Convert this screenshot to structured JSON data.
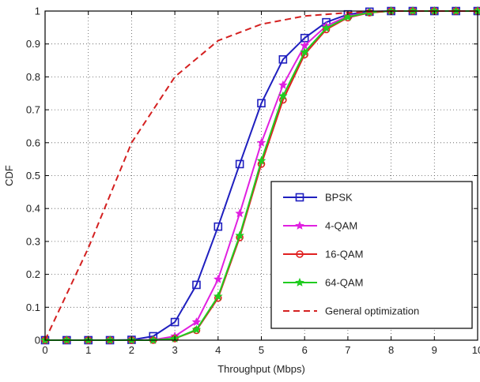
{
  "chart_data": {
    "type": "line",
    "title": "",
    "xlabel": "Throughput (Mbps)",
    "ylabel": "CDF",
    "xlim": [
      0,
      10
    ],
    "ylim": [
      0,
      1
    ],
    "xticks": [
      "0",
      "1",
      "2",
      "3",
      "4",
      "5",
      "6",
      "7",
      "8",
      "9",
      "10"
    ],
    "yticks": [
      "0",
      "0.1",
      "0.2",
      "0.3",
      "0.4",
      "0.5",
      "0.6",
      "0.7",
      "0.8",
      "0.9",
      "1"
    ],
    "grid": true,
    "legend_position": "lower-right",
    "series": [
      {
        "name": "BPSK",
        "color": "#1f1fbf",
        "marker": "square",
        "dash": "solid",
        "points": [
          [
            0,
            0
          ],
          [
            0.5,
            0
          ],
          [
            1,
            0
          ],
          [
            1.5,
            0
          ],
          [
            2,
            0.001
          ],
          [
            2.5,
            0.012
          ],
          [
            3,
            0.055
          ],
          [
            3.5,
            0.168
          ],
          [
            4,
            0.345
          ],
          [
            4.5,
            0.535
          ],
          [
            5,
            0.72
          ],
          [
            5.5,
            0.853
          ],
          [
            6,
            0.918
          ],
          [
            6.5,
            0.966
          ],
          [
            7,
            0.99
          ],
          [
            7.5,
            0.998
          ],
          [
            8,
            1
          ],
          [
            8.5,
            1
          ],
          [
            9,
            1
          ],
          [
            9.5,
            1
          ],
          [
            10,
            1
          ]
        ]
      },
      {
        "name": "4-QAM",
        "color": "#e020e0",
        "marker": "star",
        "dash": "solid",
        "points": [
          [
            0,
            0
          ],
          [
            0.5,
            0
          ],
          [
            1,
            0
          ],
          [
            1.5,
            0
          ],
          [
            2,
            0
          ],
          [
            2.5,
            0.001
          ],
          [
            3,
            0.012
          ],
          [
            3.5,
            0.055
          ],
          [
            4,
            0.185
          ],
          [
            4.5,
            0.385
          ],
          [
            5,
            0.6
          ],
          [
            5.5,
            0.775
          ],
          [
            6,
            0.895
          ],
          [
            6.5,
            0.955
          ],
          [
            7,
            0.985
          ],
          [
            7.5,
            0.996
          ],
          [
            8,
            1
          ],
          [
            8.5,
            1
          ],
          [
            9,
            1
          ],
          [
            9.5,
            1
          ],
          [
            10,
            1
          ]
        ]
      },
      {
        "name": "16-QAM",
        "color": "#e02020",
        "marker": "circle",
        "dash": "solid",
        "points": [
          [
            0,
            0
          ],
          [
            0.5,
            0
          ],
          [
            1,
            0
          ],
          [
            1.5,
            0
          ],
          [
            2,
            0
          ],
          [
            2.5,
            0
          ],
          [
            3,
            0.005
          ],
          [
            3.5,
            0.03
          ],
          [
            4,
            0.128
          ],
          [
            4.5,
            0.312
          ],
          [
            5,
            0.535
          ],
          [
            5.5,
            0.73
          ],
          [
            6,
            0.868
          ],
          [
            6.5,
            0.944
          ],
          [
            7,
            0.98
          ],
          [
            7.5,
            0.995
          ],
          [
            8,
            1
          ],
          [
            8.5,
            1
          ],
          [
            9,
            1
          ],
          [
            9.5,
            1
          ],
          [
            10,
            1
          ]
        ]
      },
      {
        "name": "64-QAM",
        "color": "#20cc20",
        "marker": "star",
        "dash": "solid",
        "points": [
          [
            0,
            0
          ],
          [
            0.5,
            0
          ],
          [
            1,
            0
          ],
          [
            1.5,
            0
          ],
          [
            2,
            0
          ],
          [
            2.5,
            0
          ],
          [
            3,
            0.005
          ],
          [
            3.5,
            0.032
          ],
          [
            4,
            0.133
          ],
          [
            4.5,
            0.318
          ],
          [
            5,
            0.545
          ],
          [
            5.5,
            0.742
          ],
          [
            6,
            0.875
          ],
          [
            6.5,
            0.948
          ],
          [
            7,
            0.982
          ],
          [
            7.5,
            0.996
          ],
          [
            8,
            1
          ],
          [
            8.5,
            1
          ],
          [
            9,
            1
          ],
          [
            9.5,
            1
          ],
          [
            10,
            1
          ]
        ]
      },
      {
        "name": "General optimization",
        "color": "#d42020",
        "marker": "none",
        "dash": "dashed",
        "points": [
          [
            0,
            0
          ],
          [
            1,
            0.28
          ],
          [
            2,
            0.6
          ],
          [
            3,
            0.8
          ],
          [
            4,
            0.91
          ],
          [
            5,
            0.96
          ],
          [
            6,
            0.985
          ],
          [
            7,
            0.995
          ],
          [
            8,
            1
          ],
          [
            9,
            1
          ],
          [
            10,
            1
          ]
        ]
      }
    ]
  }
}
